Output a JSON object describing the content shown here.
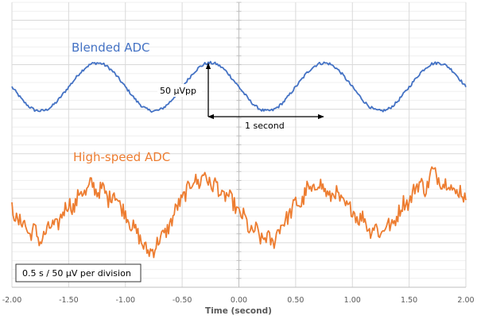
{
  "chart_data": {
    "type": "line",
    "title": "",
    "xlabel": "Time (second)",
    "ylabel": "",
    "xlim": [
      -2,
      2
    ],
    "ylim": [
      0,
      320
    ],
    "y_unit": "µV",
    "x_major_step": 0.5,
    "y_major_step": 50,
    "y_minor_step": 10,
    "grid": true,
    "x_tick_labels": [
      "-2.00",
      "-1.50",
      "-1.00",
      "-0.50",
      "0.00",
      "0.50",
      "1.00",
      "1.50",
      "2.00"
    ],
    "x_start": -2,
    "x_step": 0.05,
    "series": [
      {
        "name": "Blended ADC",
        "color": "#4472C4",
        "noise_uV": 1.6,
        "values": [
          225,
          217,
          209,
          203,
          199,
          198,
          199,
          203,
          209,
          217,
          225,
          233,
          241,
          247,
          251,
          252,
          251,
          247,
          241,
          233,
          225,
          217,
          209,
          203,
          199,
          198,
          199,
          203,
          209,
          217,
          225,
          233,
          241,
          247,
          251,
          252,
          251,
          247,
          241,
          233,
          225,
          217,
          209,
          203,
          199,
          198,
          199,
          203,
          209,
          217,
          225,
          233,
          241,
          247,
          251,
          252,
          251,
          247,
          241,
          233,
          225,
          217,
          209,
          203,
          199,
          198,
          199,
          203,
          209,
          217,
          225,
          233,
          241,
          247,
          251,
          252,
          251,
          247,
          241,
          233,
          225
        ]
      },
      {
        "name": "High-speed ADC",
        "color": "#ED7D31",
        "noise_uV": 9,
        "values": [
          90,
          72,
          76,
          58,
          66,
          50,
          62,
          70,
          68,
          85,
          95,
          88,
          110,
          104,
          118,
          106,
          112,
          98,
          108,
          92,
          84,
          70,
          62,
          48,
          40,
          42,
          55,
          60,
          72,
          90,
          98,
          110,
          122,
          116,
          130,
          112,
          118,
          100,
          104,
          95,
          82,
          80,
          60,
          66,
          52,
          58,
          48,
          66,
          74,
          82,
          96,
          92,
          112,
          106,
          120,
          110,
          100,
          108,
          96,
          90,
          88,
          76,
          80,
          62,
          70,
          58,
          72,
          68,
          82,
          96,
          94,
          112,
          118,
          108,
          132,
          124,
          116,
          120,
          104,
          110,
          98
        ]
      }
    ],
    "annotations": {
      "amplitude_label": "50 µVpp",
      "period_label": "1 second",
      "scale_box": "0.5 s / 50 µV per division"
    }
  }
}
